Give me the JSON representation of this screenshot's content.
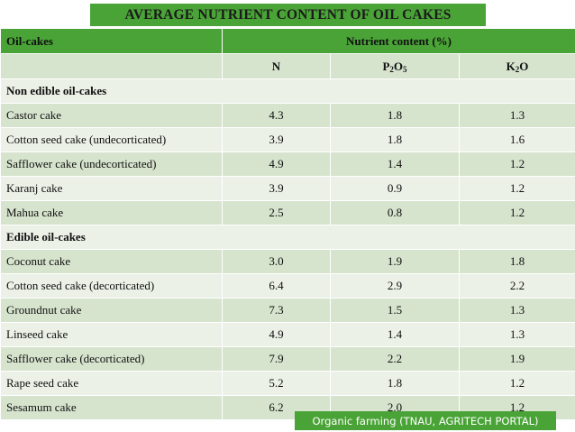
{
  "title": "AVERAGE NUTRIENT CONTENT OF OIL CAKES",
  "header": {
    "first_col": "Oil-cakes",
    "group_label": "Nutrient content (%)"
  },
  "subheader": {
    "n": "N",
    "p_main": "P",
    "p_sub1": "2",
    "p_mid": "O",
    "p_sub2": "5",
    "k_main": "K",
    "k_sub": "2",
    "k_tail": "O"
  },
  "sections": {
    "non_edible": "Non edible oil-cakes",
    "edible": "Edible oil-cakes"
  },
  "rows_non_edible": [
    {
      "name": "Castor cake",
      "n": "4.3",
      "p": "1.8",
      "k": "1.3"
    },
    {
      "name": "Cotton seed cake (undecorticated)",
      "n": "3.9",
      "p": "1.8",
      "k": "1.6"
    },
    {
      "name": "Safflower cake (undecorticated)",
      "n": "4.9",
      "p": "1.4",
      "k": "1.2"
    },
    {
      "name": "Karanj cake",
      "n": "3.9",
      "p": "0.9",
      "k": "1.2"
    },
    {
      "name": "Mahua cake",
      "n": "2.5",
      "p": "0.8",
      "k": "1.2"
    }
  ],
  "rows_edible": [
    {
      "name": "Coconut cake",
      "n": "3.0",
      "p": "1.9",
      "k": "1.8"
    },
    {
      "name": "Cotton seed cake (decorticated)",
      "n": "6.4",
      "p": "2.9",
      "k": "2.2"
    },
    {
      "name": "Groundnut cake",
      "n": "7.3",
      "p": "1.5",
      "k": "1.3"
    },
    {
      "name": "Linseed cake",
      "n": "4.9",
      "p": "1.4",
      "k": "1.3"
    },
    {
      "name": "Safflower cake (decorticated)",
      "n": "7.9",
      "p": "2.2",
      "k": "1.9"
    },
    {
      "name": "Rape seed cake",
      "n": "5.2",
      "p": "1.8",
      "k": "1.2"
    },
    {
      "name": "Sesamum cake",
      "n": "6.2",
      "p": "2.0",
      "k": "1.2"
    }
  ],
  "footer": "Organic farming (TNAU, AGRITECH PORTAL)",
  "colors": {
    "accent_green": "#4aa337",
    "row_dark": "#d6e3cd",
    "row_light": "#ebf1e7"
  }
}
